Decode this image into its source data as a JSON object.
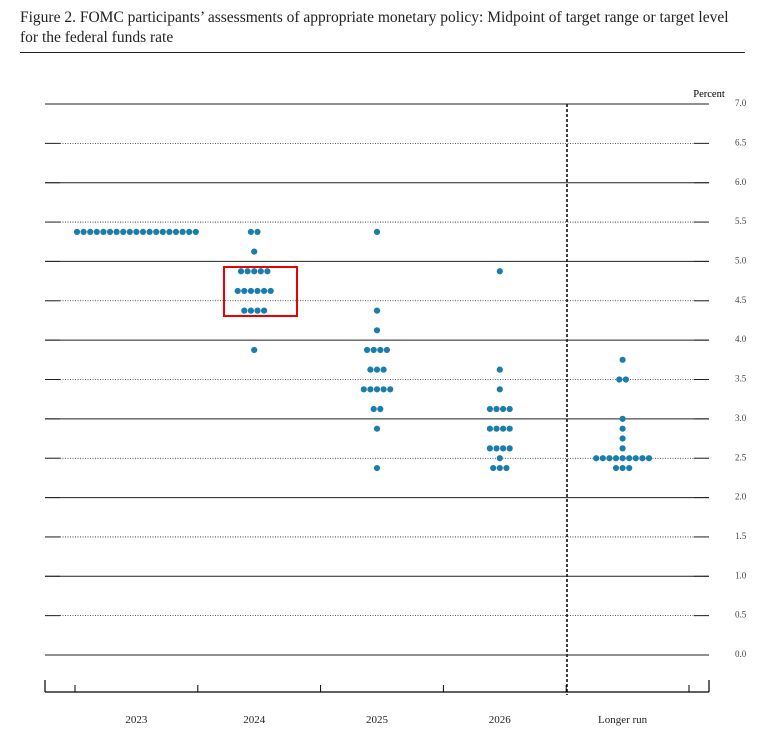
{
  "chart_data": {
    "type": "dot",
    "title": "Figure 2. FOMC participants’ assessments of appropriate monetary policy: Midpoint of target range or target level for the federal funds rate",
    "y_label": "Percent",
    "categories": [
      "2023",
      "2024",
      "2025",
      "2026",
      "Longer run"
    ],
    "dots": [
      [
        5.375,
        5.375,
        5.375,
        5.375,
        5.375,
        5.375,
        5.375,
        5.375,
        5.375,
        5.375,
        5.375,
        5.375,
        5.375,
        5.375,
        5.375,
        5.375,
        5.375,
        5.375,
        5.375
      ],
      [
        5.375,
        5.375,
        5.125,
        4.875,
        4.875,
        4.875,
        4.875,
        4.875,
        4.625,
        4.625,
        4.625,
        4.625,
        4.625,
        4.625,
        4.375,
        4.375,
        4.375,
        4.375,
        3.875
      ],
      [
        5.375,
        4.375,
        4.125,
        3.875,
        3.875,
        3.875,
        3.875,
        3.625,
        3.625,
        3.625,
        3.375,
        3.375,
        3.375,
        3.375,
        3.375,
        3.125,
        3.125,
        2.875,
        2.375
      ],
      [
        4.875,
        3.625,
        3.375,
        3.125,
        3.125,
        3.125,
        3.125,
        2.875,
        2.875,
        2.875,
        2.875,
        2.625,
        2.625,
        2.625,
        2.625,
        2.5,
        2.375,
        2.375,
        2.375
      ],
      [
        3.75,
        3.5,
        3.5,
        3.0,
        2.875,
        2.75,
        2.625,
        2.5,
        2.5,
        2.5,
        2.5,
        2.5,
        2.5,
        2.5,
        2.5,
        2.5,
        2.375,
        2.375,
        2.375
      ]
    ],
    "color": "#1a7dab",
    "ylim": [
      0,
      7
    ],
    "yticks": [
      {
        "value": 0,
        "label": "0.0"
      },
      {
        "value": 0.5,
        "label": "0.5"
      },
      {
        "value": 1,
        "label": "1.0"
      },
      {
        "value": 1.5,
        "label": "1.5"
      },
      {
        "value": 2,
        "label": "2.0"
      },
      {
        "value": 2.5,
        "label": "2.5"
      },
      {
        "value": 3,
        "label": "3.0"
      },
      {
        "value": 3.5,
        "label": "3.5"
      },
      {
        "value": 4,
        "label": "4.0"
      },
      {
        "value": 4.5,
        "label": "4.5"
      },
      {
        "value": 5,
        "label": "5.0"
      },
      {
        "value": 5.5,
        "label": "5.5"
      },
      {
        "value": 6,
        "label": "6.0"
      },
      {
        "value": 6.5,
        "label": "6.5"
      },
      {
        "value": 7,
        "label": "7.0"
      }
    ],
    "grid": true
  }
}
